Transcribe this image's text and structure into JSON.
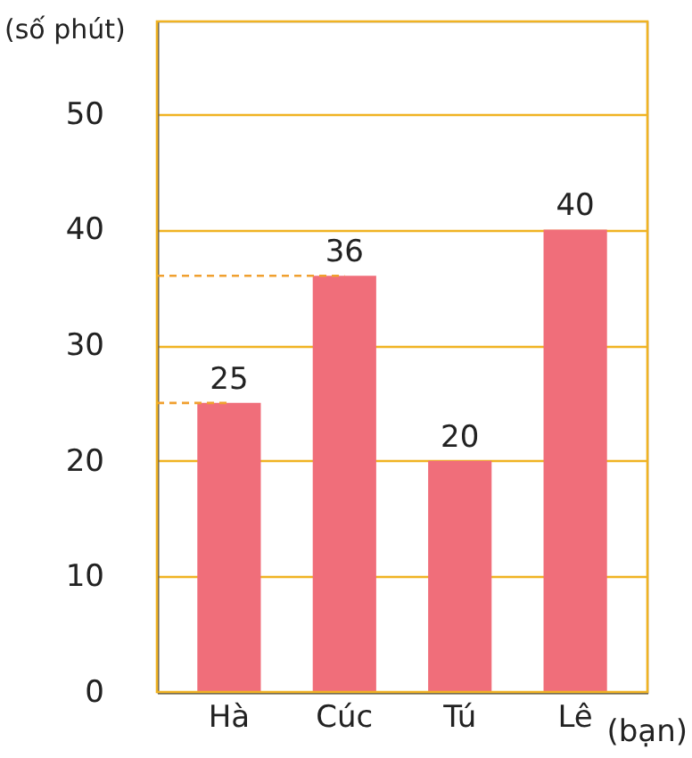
{
  "chart_data": {
    "type": "bar",
    "categories": [
      "Hà",
      "Cúc",
      "Tú",
      "Lê"
    ],
    "values": [
      25,
      36,
      20,
      40
    ],
    "color": "#f06e7a",
    "xlabel": "(bạn)",
    "ylabel": "(số phút)",
    "ylim": [
      0,
      58
    ],
    "yticks": [
      0,
      10,
      20,
      30,
      40,
      50
    ],
    "grid": "y",
    "data_labels": true,
    "ref_lines": [
      {
        "axis": "y",
        "value": 25,
        "color": "#f0a030",
        "line_style": "dashed"
      },
      {
        "axis": "y",
        "value": 36,
        "color": "#f0a030",
        "line_style": "dashed"
      }
    ]
  }
}
